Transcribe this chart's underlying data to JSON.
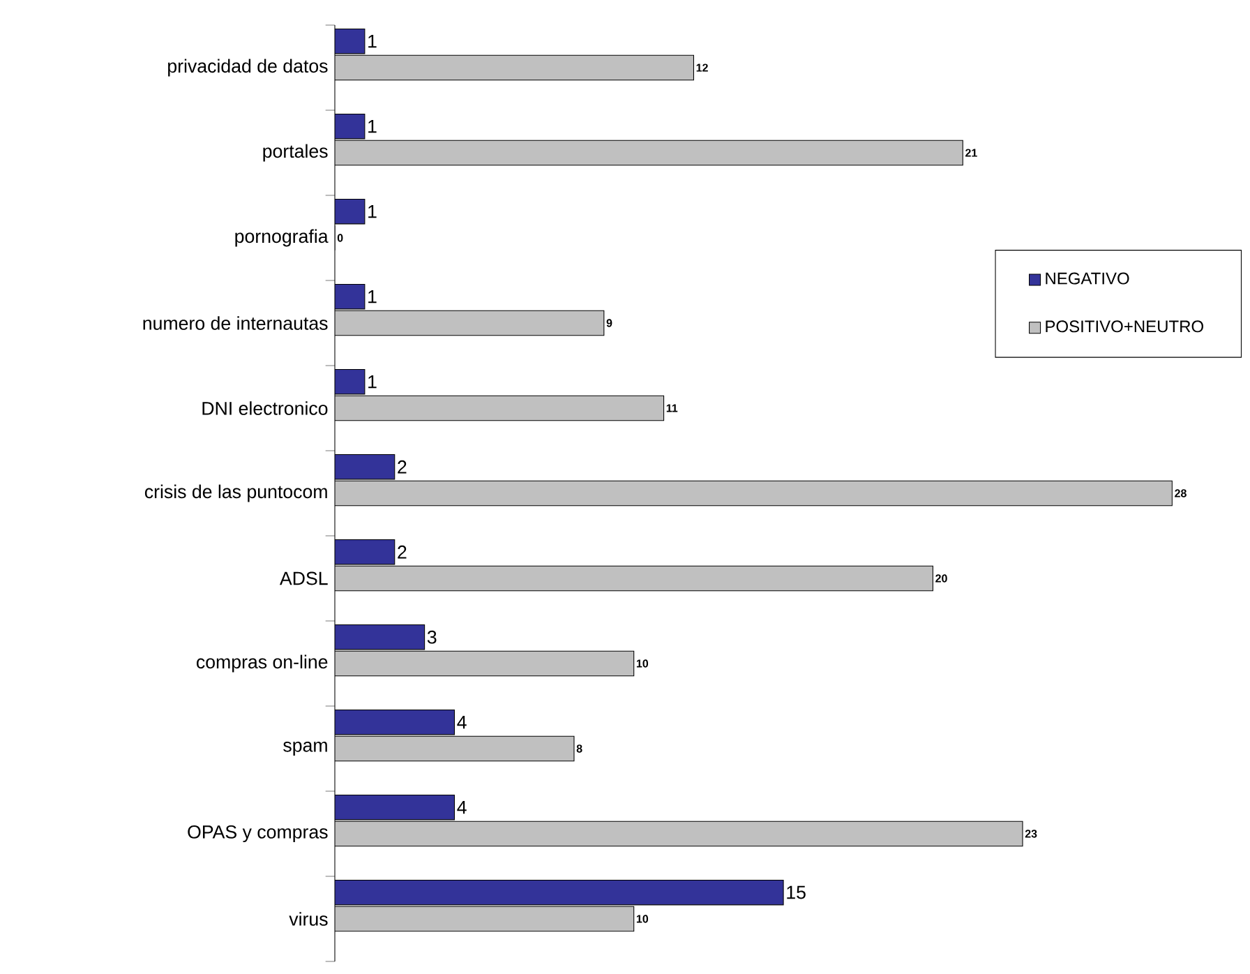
{
  "chart_data": {
    "type": "bar",
    "orientation": "horizontal",
    "categories": [
      "privacidad de datos",
      "portales",
      "pornografia",
      "numero de internautas",
      "DNI electronico",
      "crisis de las puntocom",
      "ADSL",
      "compras on-line",
      "spam",
      "OPAS y compras",
      "virus"
    ],
    "series": [
      {
        "name": "NEGATIVO",
        "color": "#333399",
        "values": [
          1,
          1,
          1,
          1,
          1,
          2,
          2,
          3,
          4,
          4,
          15
        ]
      },
      {
        "name": "POSITIVO+NEUTRO",
        "color": "#c0c0c0",
        "values": [
          12,
          21,
          0,
          9,
          11,
          28,
          20,
          10,
          8,
          23,
          10
        ]
      }
    ],
    "data_labels": true,
    "legend": "right",
    "tick_labels": "y"
  }
}
